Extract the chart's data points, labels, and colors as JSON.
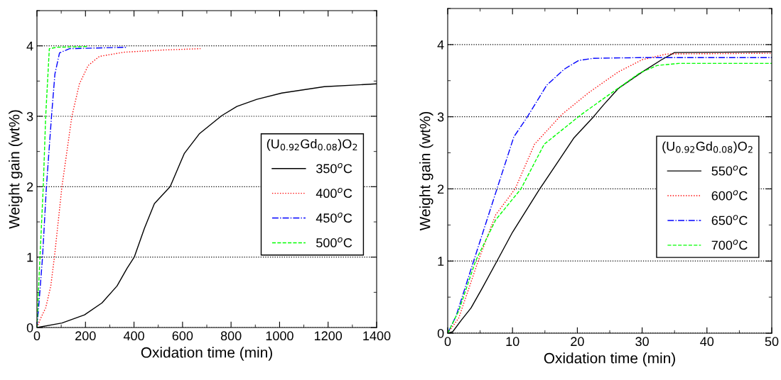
{
  "chart_data": [
    {
      "type": "line",
      "xlabel": "Oxidation time (min)",
      "ylabel": "Weight gain (wt%)",
      "legend_title": "(U$_{0.92}$Gd$_{0.08}$)O$_{2}$",
      "xlim": [
        0,
        1400
      ],
      "ylim": [
        0,
        4.5
      ],
      "xticks": [
        0,
        200,
        400,
        600,
        800,
        1000,
        1200,
        1400
      ],
      "yticks": [
        0,
        1,
        2,
        3,
        4
      ],
      "grid": "y",
      "legend": "right",
      "series": [
        {
          "name": "350$^{o}$C",
          "color": "#000000",
          "line_style": "solid",
          "x": [
            0,
            103,
            196,
            268,
            330,
            371,
            401,
            443,
            484,
            549,
            607,
            669,
            762,
            824,
            906,
            1009,
            1184,
            1400
          ],
          "values": [
            0,
            0.064,
            0.18,
            0.35,
            0.59,
            0.84,
            1.0,
            1.41,
            1.76,
            2.0,
            2.47,
            2.75,
            3.01,
            3.14,
            3.24,
            3.33,
            3.42,
            3.46
          ]
        },
        {
          "name": "400$^{o}$C",
          "color": "#ff0000",
          "line_style": "dotted",
          "x": [
            0,
            15,
            36,
            57,
            72,
            103,
            144,
            175,
            211,
            257,
            360,
            515,
            674
          ],
          "values": [
            0,
            0.13,
            0.28,
            0.59,
            1.0,
            2.0,
            3.0,
            3.46,
            3.72,
            3.85,
            3.91,
            3.94,
            3.96
          ]
        },
        {
          "name": "450$^{o}$C",
          "color": "#0000ff",
          "line_style": "dashdot",
          "x": [
            0,
            10,
            23,
            39,
            60,
            74,
            93,
            134,
            371
          ],
          "values": [
            0,
            0.42,
            1.0,
            2.0,
            3.0,
            3.6,
            3.9,
            3.96,
            3.98
          ]
        },
        {
          "name": "500$^{o}$C",
          "color": "#00ff00",
          "line_style": "dashed",
          "x": [
            0,
            7,
            26,
            36,
            51,
            82,
            206
          ],
          "values": [
            0,
            0.59,
            2.0,
            3.0,
            3.96,
            3.98,
            3.99
          ]
        }
      ]
    },
    {
      "type": "line",
      "xlabel": "Oxidation time (min)",
      "ylabel": "Weight gain (wt%)",
      "legend_title": "(U$_{0.92}$Gd$_{0.08}$)O$_{2}$",
      "xlim": [
        0,
        50
      ],
      "ylim": [
        0,
        4.5
      ],
      "xticks": [
        0,
        10,
        20,
        30,
        40,
        50
      ],
      "yticks": [
        0,
        1,
        2,
        3,
        4
      ],
      "grid": "y",
      "legend": "right",
      "series": [
        {
          "name": "550$^{o}$C",
          "color": "#000000",
          "line_style": "solid",
          "x": [
            0,
            0.76,
            2.1,
            3.6,
            5.3,
            7.6,
            10,
            14.2,
            17.2,
            19.5,
            22.5,
            24.0,
            26.3,
            30,
            33,
            35,
            50
          ],
          "values": [
            0,
            0.02,
            0.18,
            0.35,
            0.62,
            1.0,
            1.4,
            2.0,
            2.4,
            2.71,
            3.0,
            3.16,
            3.39,
            3.62,
            3.79,
            3.89,
            3.9
          ]
        },
        {
          "name": "600$^{o}$C",
          "color": "#ff0000",
          "line_style": "dotted",
          "x": [
            0,
            1.7,
            4.7,
            7.4,
            10.4,
            13.4,
            17.6,
            21.7,
            26.3,
            30,
            33.8,
            50
          ],
          "values": [
            0,
            0.21,
            1.0,
            1.64,
            2.0,
            2.62,
            3.03,
            3.33,
            3.62,
            3.79,
            3.87,
            3.88
          ]
        },
        {
          "name": "650$^{o}$C",
          "color": "#0000ff",
          "line_style": "dashdot",
          "x": [
            0,
            1.3,
            4.0,
            7.6,
            10.2,
            12.3,
            15.3,
            18,
            20.2,
            22.5,
            30,
            50
          ],
          "values": [
            0,
            0.24,
            1.0,
            2.0,
            2.72,
            3.0,
            3.44,
            3.66,
            3.78,
            3.81,
            3.82,
            3.82
          ]
        },
        {
          "name": "700$^{o}$C",
          "color": "#00ff00",
          "line_style": "dashed",
          "x": [
            0,
            1.7,
            4.3,
            7.4,
            11.3,
            14.9,
            20.6,
            24.8,
            29.7,
            32.3,
            35.7,
            50
          ],
          "values": [
            0,
            0.31,
            1.0,
            1.57,
            2.0,
            2.62,
            3.03,
            3.3,
            3.61,
            3.71,
            3.74,
            3.74
          ]
        }
      ]
    }
  ]
}
